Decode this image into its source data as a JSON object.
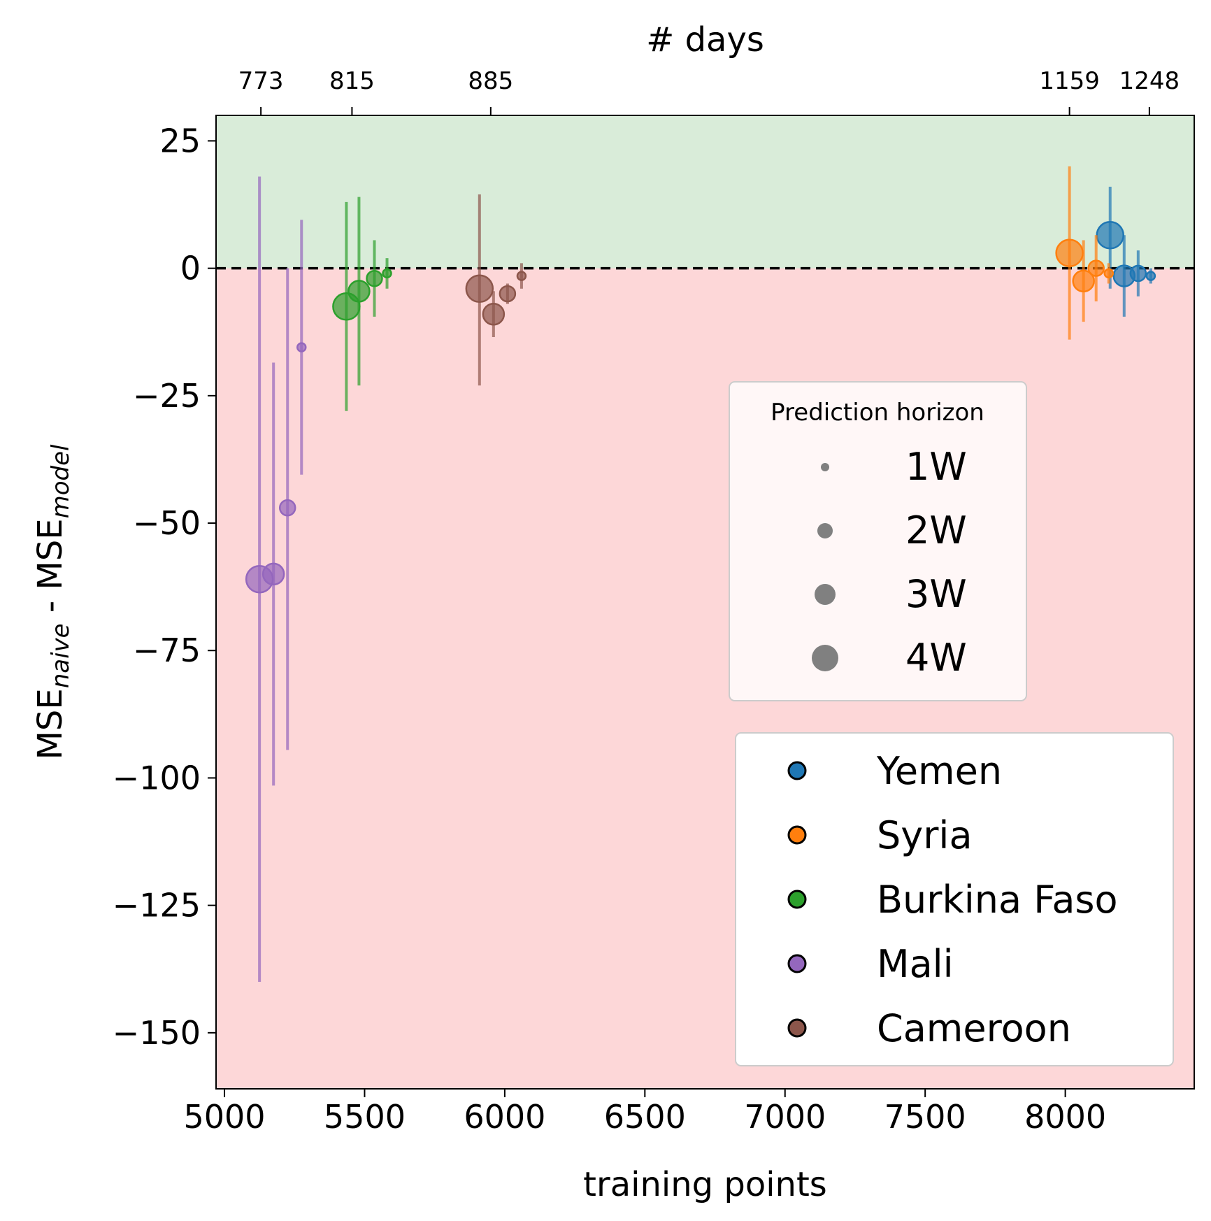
{
  "chart_data": {
    "type": "scatter",
    "xlabel": "training points",
    "ylabel_main": "MSE",
    "ylabel_sub1": "naive",
    "ylabel_mid": " - MSE",
    "ylabel_sub2": "model",
    "top_axis_title": "# days",
    "xlim": [
      4970,
      8460
    ],
    "ylim": [
      -161,
      30
    ],
    "x_ticks": [
      5000,
      5500,
      6000,
      6500,
      7000,
      7500,
      8000
    ],
    "y_ticks": [
      25,
      0,
      -25,
      -50,
      -75,
      -100,
      -125,
      -150
    ],
    "top_ticks": [
      {
        "x": 5130,
        "label": "773"
      },
      {
        "x": 5455,
        "label": "815"
      },
      {
        "x": 5950,
        "label": "885"
      },
      {
        "x": 8015,
        "label": "1159"
      },
      {
        "x": 8300,
        "label": "1248"
      }
    ],
    "regions": {
      "positive_color": "#d9ecd9",
      "negative_color": "#fdd7d8"
    },
    "reference_line_y": 0,
    "horizon_sizes": {
      "1W": 1,
      "2W": 2,
      "3W": 3,
      "4W": 4
    },
    "series": [
      {
        "name": "Yemen",
        "color": "#1f77b4",
        "points": [
          {
            "x": 8160,
            "y": 6.5,
            "lo": -4,
            "hi": 16,
            "h": "4W"
          },
          {
            "x": 8210,
            "y": -1.5,
            "lo": -9.5,
            "hi": 6.5,
            "h": "3W"
          },
          {
            "x": 8260,
            "y": -1,
            "lo": -5.5,
            "hi": 3.5,
            "h": "2W"
          },
          {
            "x": 8305,
            "y": -1.5,
            "lo": -3,
            "hi": 0,
            "h": "1W"
          }
        ]
      },
      {
        "name": "Syria",
        "color": "#ff7f0e",
        "points": [
          {
            "x": 8015,
            "y": 3,
            "lo": -14,
            "hi": 20,
            "h": "4W"
          },
          {
            "x": 8065,
            "y": -2.5,
            "lo": -10.5,
            "hi": 5.5,
            "h": "3W"
          },
          {
            "x": 8110,
            "y": 0,
            "lo": -6.5,
            "hi": 6.5,
            "h": "2W"
          },
          {
            "x": 8155,
            "y": -1,
            "lo": -3,
            "hi": 1,
            "h": "1W"
          }
        ]
      },
      {
        "name": "Burkina Faso",
        "color": "#2ca02c",
        "points": [
          {
            "x": 5435,
            "y": -7.5,
            "lo": -28,
            "hi": 13,
            "h": "4W"
          },
          {
            "x": 5480,
            "y": -4.5,
            "lo": -23,
            "hi": 14,
            "h": "3W"
          },
          {
            "x": 5535,
            "y": -2,
            "lo": -9.5,
            "hi": 5.5,
            "h": "2W"
          },
          {
            "x": 5580,
            "y": -1,
            "lo": -4,
            "hi": 2,
            "h": "1W"
          }
        ]
      },
      {
        "name": "Mali",
        "color": "#9467bd",
        "points": [
          {
            "x": 5125,
            "y": -61,
            "lo": -140,
            "hi": 18,
            "h": "4W"
          },
          {
            "x": 5175,
            "y": -60,
            "lo": -101.5,
            "hi": -18.5,
            "h": "3W"
          },
          {
            "x": 5225,
            "y": -47,
            "lo": -94.5,
            "hi": 0,
            "h": "2W"
          },
          {
            "x": 5275,
            "y": -15.5,
            "lo": -40.5,
            "hi": 9.5,
            "h": "1W"
          }
        ]
      },
      {
        "name": "Cameroon",
        "color": "#8c564b",
        "points": [
          {
            "x": 5910,
            "y": -4,
            "lo": -23,
            "hi": 14.5,
            "h": "4W"
          },
          {
            "x": 5960,
            "y": -9,
            "lo": -13.5,
            "hi": -4.5,
            "h": "3W"
          },
          {
            "x": 6010,
            "y": -5,
            "lo": -7,
            "hi": -3,
            "h": "2W"
          },
          {
            "x": 6060,
            "y": -1.5,
            "lo": -4,
            "hi": 1,
            "h": "1W"
          }
        ]
      }
    ],
    "legend_horizon": {
      "title": "Prediction horizon",
      "position": "center-right",
      "items": [
        "1W",
        "2W",
        "3W",
        "4W"
      ]
    },
    "legend_country": {
      "position": "lower-right",
      "items": [
        "Yemen",
        "Syria",
        "Burkina Faso",
        "Mali",
        "Cameroon"
      ]
    }
  }
}
